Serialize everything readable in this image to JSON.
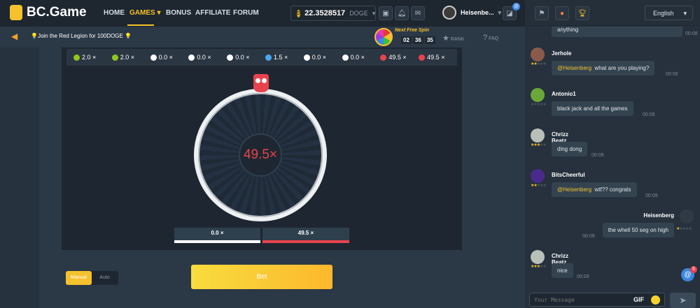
{
  "header": {
    "logo": "BC.Game",
    "nav": [
      "HOME",
      "GAMES",
      "BONUS",
      "AFFILIATE",
      "FORUM"
    ],
    "active_nav": "GAMES",
    "balance": "22.3528517",
    "currency": "DOGE",
    "username": "Heisenbe...",
    "chat_badge": "@"
  },
  "subheader": {
    "promo": "💡Join the Red Legion for 100DOGE 💡",
    "spin_title": "Next Free Spin",
    "timer": [
      "02",
      "36",
      "35"
    ],
    "rank": "RANK",
    "faq": "FAQ"
  },
  "history": [
    {
      "v": "2.0 ×",
      "c": "#8cc81e"
    },
    {
      "v": "2.0 ×",
      "c": "#8cc81e"
    },
    {
      "v": "0.0 ×",
      "c": "#ffffff"
    },
    {
      "v": "0.0 ×",
      "c": "#ffffff"
    },
    {
      "v": "0.0 ×",
      "c": "#ffffff"
    },
    {
      "v": "1.5 ×",
      "c": "#4aa8f0"
    },
    {
      "v": "0.0 ×",
      "c": "#ffffff"
    },
    {
      "v": "0.0 ×",
      "c": "#ffffff"
    },
    {
      "v": "49.5 ×",
      "c": "#e8434d"
    },
    {
      "v": "49.5 ×",
      "c": "#e8434d"
    }
  ],
  "wheel": {
    "result": "49.5×"
  },
  "segments": [
    {
      "label": "0.0 ×",
      "color": "#ffffff"
    },
    {
      "label": "49.5 ×",
      "color": "#e8434d"
    }
  ],
  "controls": {
    "manual": "Manual",
    "auto": "Auto",
    "bet": "Bet"
  },
  "chat": {
    "language": "English",
    "placeholder": "Your Message",
    "gif": "GIF",
    "mention_count": "5",
    "messages": [
      {
        "text": "anything",
        "time": "00:08"
      },
      {
        "user": "Jerhole",
        "mention": "@Heisenberg",
        "text": "what are you playing?",
        "time": "00:09"
      },
      {
        "user": "Antonio1",
        "text": "black jack and all the games",
        "time": "00:09"
      },
      {
        "user": "Chrizz Beatz",
        "text": "ding dong",
        "time": "00:09"
      },
      {
        "user": "BitsCheerful",
        "mention": "@Heisenberg",
        "text": "wtf?? congrats",
        "time": "00:09"
      },
      {
        "user": "Heisenberg",
        "text": "the whell 50 seg on high",
        "time": "00:09"
      },
      {
        "user": "Chrizz Beatz",
        "text": "nice",
        "time": "00:09"
      }
    ]
  },
  "colors": {
    "accent": "#f5c12c",
    "red": "#e8434d"
  }
}
